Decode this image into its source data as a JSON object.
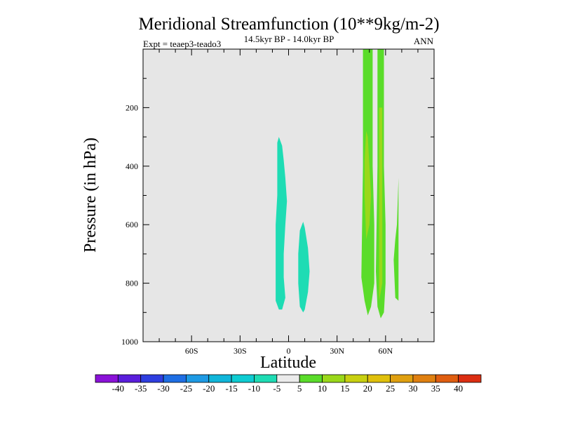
{
  "chart_data": {
    "type": "heatmap",
    "title": "Meridional Streamfunction (10**9kg/m-2)",
    "subtitle": "14.5kyr BP - 14.0kyr BP",
    "left_label": "Expt = teaep3-teado3",
    "right_label": "ANN",
    "xlabel": "Latitude",
    "ylabel": "Pressure (in hPa)",
    "xlim": [
      -90,
      90
    ],
    "ylim": [
      1000,
      0
    ],
    "x_ticks": [
      {
        "value": -60,
        "label": "60S"
      },
      {
        "value": -30,
        "label": "30S"
      },
      {
        "value": 0,
        "label": "0"
      },
      {
        "value": 30,
        "label": "30N"
      },
      {
        "value": 60,
        "label": "60N"
      }
    ],
    "y_ticks": [
      {
        "value": 200,
        "label": "200"
      },
      {
        "value": 400,
        "label": "400"
      },
      {
        "value": 600,
        "label": "600"
      },
      {
        "value": 800,
        "label": "800"
      },
      {
        "value": 1000,
        "label": "1000"
      }
    ],
    "colorbar": {
      "labels": [
        "-40",
        "-35",
        "-30",
        "-25",
        "-20",
        "-15",
        "-10",
        "-5",
        "5",
        "10",
        "15",
        "20",
        "25",
        "30",
        "35",
        "40"
      ],
      "colors": [
        "#8A12D8",
        "#5A1EDC",
        "#2E3EE0",
        "#1E6EE4",
        "#1E9AE4",
        "#10B6DA",
        "#0ECCD2",
        "#1EDCB4",
        "#EBEBEB",
        "#5ADC2A",
        "#9AD81A",
        "#C8D010",
        "#E0C00C",
        "#E0A010",
        "#E08010",
        "#E05E10",
        "#DC2E12"
      ]
    },
    "regions": [
      {
        "name": "negative-cell-tropics-south",
        "value": -7.5,
        "color": "#1EDCB4",
        "boundary": [
          [
            -6,
            300
          ],
          [
            -4,
            330
          ],
          [
            -3,
            380
          ],
          [
            -2,
            440
          ],
          [
            -1,
            520
          ],
          [
            -2,
            600
          ],
          [
            -3,
            700
          ],
          [
            -3,
            780
          ],
          [
            -2,
            850
          ],
          [
            -4,
            890
          ],
          [
            -6,
            890
          ],
          [
            -8,
            860
          ],
          [
            -8,
            790
          ],
          [
            -8,
            700
          ],
          [
            -8,
            600
          ],
          [
            -7,
            500
          ],
          [
            -7,
            400
          ],
          [
            -7,
            320
          ]
        ]
      },
      {
        "name": "negative-cell-tropics-north",
        "value": -7.5,
        "color": "#1EDCB4",
        "boundary": [
          [
            9,
            590
          ],
          [
            10,
            610
          ],
          [
            12,
            680
          ],
          [
            13,
            760
          ],
          [
            12,
            830
          ],
          [
            10,
            890
          ],
          [
            9,
            900
          ],
          [
            7,
            880
          ],
          [
            6,
            800
          ],
          [
            6,
            700
          ],
          [
            7,
            620
          ]
        ]
      },
      {
        "name": "positive-band-50n",
        "value": 7.5,
        "color": "#5ADC2A",
        "boundary": [
          [
            46,
            0
          ],
          [
            52,
            0
          ],
          [
            52,
            400
          ],
          [
            53,
            600
          ],
          [
            53,
            800
          ],
          [
            51,
            880
          ],
          [
            49,
            910
          ],
          [
            47,
            860
          ],
          [
            45,
            780
          ],
          [
            46,
            400
          ]
        ]
      },
      {
        "name": "positive-core-50n",
        "value": 12.5,
        "color": "#9AD81A",
        "boundary": [
          [
            48,
            280
          ],
          [
            49,
            300
          ],
          [
            50,
            400
          ],
          [
            51,
            500
          ],
          [
            50,
            600
          ],
          [
            48,
            650
          ],
          [
            47,
            500
          ],
          [
            47,
            380
          ]
        ]
      },
      {
        "name": "positive-band-57n",
        "value": 7.5,
        "color": "#5ADC2A",
        "boundary": [
          [
            55,
            0
          ],
          [
            59,
            0
          ],
          [
            59,
            400
          ],
          [
            60,
            600
          ],
          [
            60,
            800
          ],
          [
            59,
            900
          ],
          [
            57,
            920
          ],
          [
            55,
            880
          ],
          [
            54,
            760
          ],
          [
            55,
            400
          ]
        ]
      },
      {
        "name": "positive-core-57n",
        "value": 12.5,
        "color": "#9AD81A",
        "boundary": [
          [
            56,
            200
          ],
          [
            58,
            200
          ],
          [
            58,
            500
          ],
          [
            58,
            800
          ],
          [
            56,
            860
          ],
          [
            56,
            500
          ]
        ]
      },
      {
        "name": "positive-sliver-67n",
        "value": 7.5,
        "color": "#5ADC2A",
        "boundary": [
          [
            68,
            440
          ],
          [
            68,
            600
          ],
          [
            68,
            860
          ],
          [
            66,
            850
          ],
          [
            65,
            720
          ],
          [
            66,
            650
          ],
          [
            67,
            600
          ]
        ]
      }
    ]
  }
}
